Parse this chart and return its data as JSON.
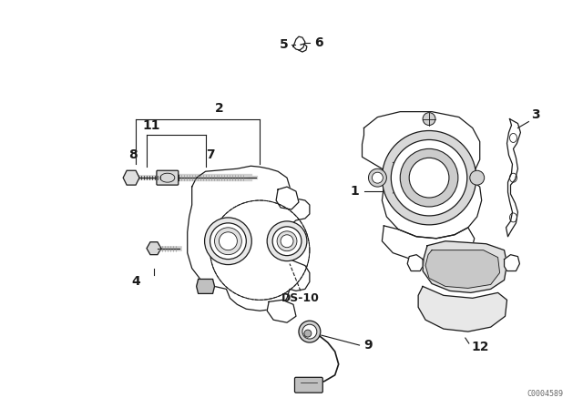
{
  "bg_color": "#ffffff",
  "line_color": "#1a1a1a",
  "watermark": "C0004589",
  "figsize": [
    6.4,
    4.48
  ],
  "dpi": 100,
  "lw": 0.9,
  "label_fs": 10
}
